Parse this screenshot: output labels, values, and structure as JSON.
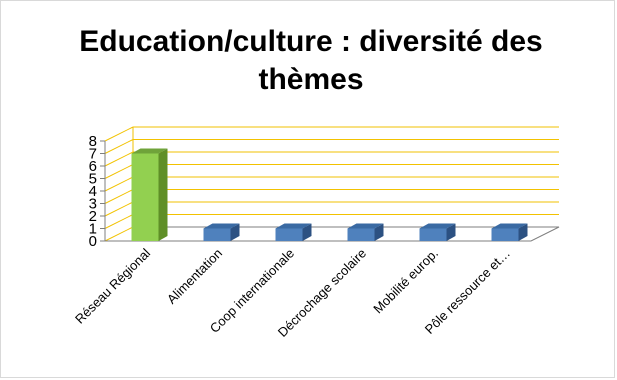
{
  "chart_data": {
    "type": "bar",
    "title": "Education/culture : diversité des thèmes",
    "categories": [
      "Réseau Régional",
      "Alimentation",
      "Coop internationale",
      "Décrochage scolaire",
      "Mobilité europ.",
      "Pôle ressource et…"
    ],
    "values": [
      7,
      1,
      1,
      1,
      1,
      1
    ],
    "ylim": [
      0,
      8
    ],
    "yticks": [
      "0",
      "1",
      "2",
      "3",
      "4",
      "5",
      "6",
      "7",
      "8"
    ],
    "xlabel": "",
    "ylabel": "",
    "grid": true,
    "legend": "none",
    "bar_style": "3d",
    "colors": {
      "highlight_front": "#92d050",
      "highlight_side": "#5f8f27",
      "highlight_top": "#6fa33a",
      "default_front": "#4f81bd",
      "default_side": "#2c5182",
      "default_top": "#3a6aa3",
      "gridline": "#f2c200",
      "axis": "#7f7f7f"
    }
  }
}
